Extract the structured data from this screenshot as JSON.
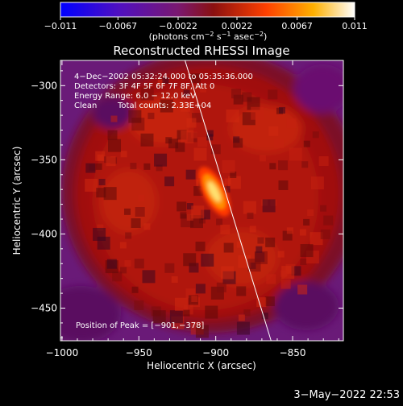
{
  "chart_data": {
    "type": "heatmap",
    "title": "Reconstructed RHESSI Image",
    "xlabel": "Heliocentric X (arcsec)",
    "ylabel": "Heliocentric Y (arcsec)",
    "xlim": [
      -1001,
      -817
    ],
    "ylim": [
      -472,
      -283
    ],
    "x_ticks": [
      -1000,
      -950,
      -900,
      -850
    ],
    "x_tick_labels": [
      "−1000",
      "−950",
      "−900",
      "−850"
    ],
    "y_ticks": [
      -300,
      -350,
      -400,
      -450
    ],
    "y_tick_labels": [
      "−300",
      "−350",
      "−400",
      "−450"
    ],
    "colorbar": {
      "min": -0.011,
      "max": 0.011,
      "ticks": [
        -0.011,
        -0.0067,
        -0.0022,
        0.0022,
        0.0067,
        0.011
      ],
      "tick_labels": [
        "−0.011",
        "−0.0067",
        "−0.0022",
        "0.0022",
        "0.0067",
        "0.011"
      ],
      "colors": [
        "#0000ff",
        "#5010c0",
        "#7a1870",
        "#8a1010",
        "#ff4000",
        "#ffb000",
        "#ffffff"
      ]
    },
    "annotations": {
      "time_range": "4−Dec−2002 05:32:24.000 to 05:35:36.000",
      "detectors": "Detectors: 3F 4F 5F 6F 7F 8F, Att 0",
      "energy_range": "Energy Range: 6.0 − 12.0 keV",
      "clean": "Clean",
      "total_counts": "Total counts: 2.33E+04",
      "peak": "Position of Peak = [−901,−378]"
    },
    "source": {
      "x": -901,
      "y": -378
    },
    "limb_line": [
      [
        -920,
        -283
      ],
      [
        -864,
        -472
      ]
    ]
  },
  "colorbar_unit_prefix": "(photons cm",
  "colorbar_unit_exp1": "−2",
  "colorbar_unit_mid": " s",
  "colorbar_unit_exp2": "−1",
  "colorbar_unit_mid2": " asec",
  "colorbar_unit_exp3": "−2",
  "colorbar_unit_suffix": ")",
  "timestamp": "3−May−2022 22:53"
}
